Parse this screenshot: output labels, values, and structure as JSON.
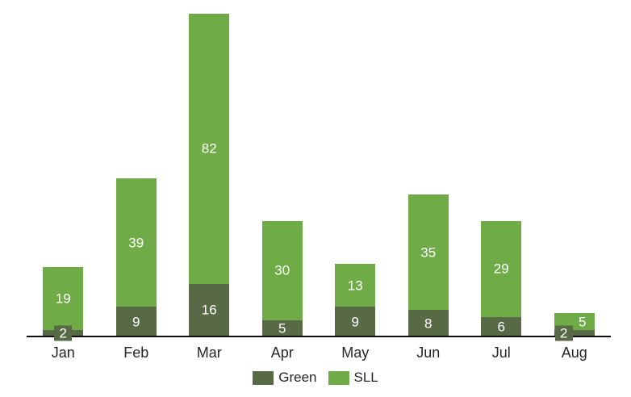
{
  "chart_data": {
    "type": "bar",
    "stacked": true,
    "title": "",
    "xlabel": "",
    "ylabel": "",
    "categories": [
      "Jan",
      "Feb",
      "Mar",
      "Apr",
      "May",
      "Jun",
      "Jul",
      "Aug"
    ],
    "series": [
      {
        "name": "Green",
        "color": "#586946",
        "values": [
          2,
          9,
          16,
          5,
          9,
          8,
          6,
          2
        ]
      },
      {
        "name": "SLL",
        "color": "#6FAC47",
        "values": [
          19,
          39,
          82,
          30,
          13,
          35,
          29,
          5
        ]
      }
    ],
    "totals": [
      21,
      48,
      98,
      35,
      22,
      43,
      35,
      7
    ],
    "ylim": [
      0,
      98
    ],
    "grid": false,
    "y_axis_visible": false,
    "x_axis_line_visible": true,
    "data_labels": {
      "visible": true,
      "color": "#FFFFFF",
      "placement": "inside-center"
    },
    "legend": {
      "position": "bottom",
      "entries": [
        "Green",
        "SLL"
      ]
    }
  },
  "colors": {
    "background": "#FFFFFF",
    "axis_line": "#0D0D0D",
    "axis_label_text": "#262626",
    "legend_text": "#262626",
    "data_label_text": "#FFFFFF",
    "series_green": "#586946",
    "series_sll": "#6FAC47"
  }
}
